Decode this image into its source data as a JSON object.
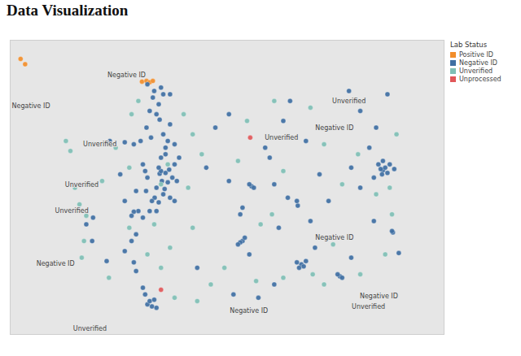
{
  "chart_data": {
    "type": "scatter",
    "title": "Data Visualization",
    "legend_title": "Lab Status",
    "legend": "top-right",
    "tick_labels": false,
    "xlim": [
      -125.63,
      -116.05
    ],
    "ylim": [
      45.2,
      49.61
    ],
    "series": [
      {
        "name": "Positive ID",
        "color": "#f28e2b",
        "x": [
          -122.72,
          -122.62,
          -122.55,
          -122.48,
          -125.4,
          -125.3
        ],
        "y": [
          48.99,
          49.0,
          48.98,
          49.0,
          49.33,
          49.25
        ]
      },
      {
        "name": "Negative ID",
        "color": "#3f6fa3",
        "x": [
          -122.33,
          -122.3,
          -122.2,
          -122.12,
          -122.35,
          -122.28,
          -122.22,
          -122.44,
          -122.5,
          -122.35,
          -122.25,
          -122.15,
          -122.05,
          -122.0,
          -122.2,
          -122.2,
          -122.15,
          -122.25,
          -122.33,
          -122.4,
          -122.48,
          -122.45,
          -122.3,
          -122.6,
          -122.1,
          -122.0,
          -121.9,
          -121.95,
          -122.6,
          -122.65,
          -122.7,
          -122.63,
          -122.8,
          -122.9,
          -122.95,
          -122.7,
          -122.55,
          -122.4,
          -123.1,
          -122.85,
          -122.52,
          -122.75,
          -122.9,
          -123.43,
          -123.1,
          -122.62,
          -122.55,
          -122.35,
          -122.25,
          -122.1,
          -122.4,
          -122.3,
          -122.1,
          -122.0,
          -122.6,
          -122.55,
          -122.5,
          -122.45,
          -122.65,
          -122.7,
          -122.4,
          -122.85,
          -122.9,
          -122.95,
          -122.85,
          -123.8,
          -123.95,
          -123.82,
          -123.1,
          -123.5,
          -123.2,
          -120.5,
          -120.55,
          -120.45,
          -120.6,
          -120.35,
          -120.55,
          -120.5,
          -120.3,
          -120.35,
          -120.25,
          -119.28,
          -119.3,
          -119.5,
          -119.9,
          -120.0,
          -119.6,
          -119.45,
          -119.1,
          -119.7,
          -119.2,
          -119.15,
          -119.3,
          -119.1,
          -119.25,
          -118.9,
          -119.0,
          -118.6,
          -118.35,
          -118.3,
          -118.4,
          -118.1,
          -117.18,
          -117.2,
          -117.05,
          -117.6,
          -117.9,
          -118.1,
          -117.4,
          -117.45,
          -117.35,
          -117.3,
          -117.42,
          -117.25,
          -117.5,
          -117.15,
          -117.4,
          -117.6,
          -117.7,
          -117.9,
          -118.15,
          -117.3,
          -117.55,
          -120.8,
          -121.1,
          -121.3,
          -120.8,
          -121.5,
          -120.7,
          -119.8,
          -120.15,
          -118.8,
          -119.8
        ],
        "y": [
          47.61,
          47.65,
          47.62,
          47.67,
          47.7,
          47.5,
          47.38,
          47.25,
          47.2,
          47.18,
          47.3,
          47.48,
          47.55,
          47.75,
          47.9,
          48.0,
          48.1,
          48.2,
          48.42,
          48.5,
          48.75,
          48.85,
          48.9,
          48.95,
          48.35,
          48.05,
          47.85,
          47.5,
          47.55,
          47.65,
          47.75,
          47.35,
          47.05,
          47.04,
          46.98,
          46.95,
          47.05,
          47.05,
          47.2,
          47.35,
          48.15,
          48.1,
          48.05,
          48.1,
          48.08,
          48.3,
          48.55,
          48.65,
          48.8,
          48.8,
          47.4,
          47.85,
          47.25,
          47.2,
          45.65,
          45.7,
          45.62,
          45.72,
          45.8,
          45.9,
          45.6,
          46.15,
          46.28,
          46.6,
          46.7,
          46.95,
          46.85,
          46.6,
          46.45,
          46.3,
          47.6,
          46.6,
          46.58,
          46.65,
          46.55,
          46.4,
          47.0,
          47.1,
          47.42,
          47.45,
          47.4,
          47.13,
          47.2,
          47.25,
          47.85,
          48.0,
          48.4,
          48.7,
          48.1,
          46.8,
          46.25,
          46.22,
          46.28,
          46.3,
          46.2,
          46.5,
          46.9,
          47.2,
          46.07,
          46.05,
          46.1,
          46.35,
          46.73,
          46.75,
          46.42,
          46.9,
          47.4,
          47.7,
          47.66,
          47.68,
          47.7,
          47.62,
          47.6,
          47.75,
          47.75,
          47.68,
          47.8,
          47.55,
          48.0,
          48.55,
          48.85,
          48.8,
          48.3,
          48.5,
          48.3,
          47.7,
          47.5,
          46.2,
          45.8,
          45.95,
          45.75,
          47.6,
          47.45
        ]
      },
      {
        "name": "Unverified",
        "color": "#7fbfb5",
        "x": [
          -124.4,
          -124.3,
          -124.2,
          -124.1,
          -123.95,
          -124.0,
          -123.6,
          -123.3,
          -123.8,
          -123.0,
          -122.95,
          -122.8,
          -121.8,
          -121.6,
          -121.4,
          -121.7,
          -121.6,
          -122.1,
          -122.3,
          -122.0,
          -121.5,
          -121.2,
          -120.9,
          -120.2,
          -119.6,
          -118.95,
          -118.7,
          -117.9,
          -117.35,
          -117.2,
          -117.55,
          -118.3,
          -118.7,
          -119.0,
          -119.8,
          -120.4,
          -120.6,
          -119.6,
          -119.85,
          -120.1,
          -118.5,
          -117.95,
          -117.1,
          -117.25,
          -122.3,
          -122.15,
          -122.45,
          -122.6,
          -123.0,
          -123.45,
          -124.05
        ],
        "y": [
          48.1,
          47.95,
          47.4,
          47.15,
          46.98,
          46.6,
          47.5,
          48.0,
          48.05,
          47.7,
          48.5,
          48.7,
          48.5,
          48.2,
          47.9,
          47.4,
          46.8,
          46.5,
          46.2,
          45.75,
          45.7,
          45.95,
          46.2,
          46.0,
          46.05,
          46.1,
          45.95,
          46.1,
          46.4,
          47.0,
          47.3,
          47.45,
          48.05,
          48.6,
          48.7,
          48.4,
          47.8,
          47.65,
          47.0,
          46.85,
          46.55,
          47.9,
          48.2,
          47.4,
          47.45,
          47.75,
          46.85,
          46.4,
          46.8,
          46.05,
          46.35
        ]
      },
      {
        "name": "Unprocessed",
        "color": "#e15759",
        "x": [
          -120.33,
          -122.3
        ],
        "y": [
          48.15,
          45.87
        ]
      }
    ],
    "annotations": [
      {
        "text": "Negative ID",
        "x": -123.06,
        "y": 49.09
      },
      {
        "text": "Negative ID",
        "x": -125.17,
        "y": 48.63
      },
      {
        "text": "Unverified",
        "x": -118.15,
        "y": 48.7
      },
      {
        "text": "Negative ID",
        "x": -118.47,
        "y": 48.3
      },
      {
        "text": "Unverified",
        "x": -119.64,
        "y": 48.15
      },
      {
        "text": "Unverified",
        "x": -123.65,
        "y": 48.05
      },
      {
        "text": "Unverified",
        "x": -124.05,
        "y": 47.44
      },
      {
        "text": "Unverified",
        "x": -124.27,
        "y": 47.05
      },
      {
        "text": "Negative ID",
        "x": -118.47,
        "y": 46.65
      },
      {
        "text": "Negative ID",
        "x": -124.63,
        "y": 46.26
      },
      {
        "text": "Negative ID",
        "x": -117.49,
        "y": 45.77
      },
      {
        "text": "Negative ID",
        "x": -120.36,
        "y": 45.56
      },
      {
        "text": "Unverified",
        "x": -117.72,
        "y": 45.61
      },
      {
        "text": "Unverified",
        "x": -123.87,
        "y": 45.29
      }
    ]
  }
}
